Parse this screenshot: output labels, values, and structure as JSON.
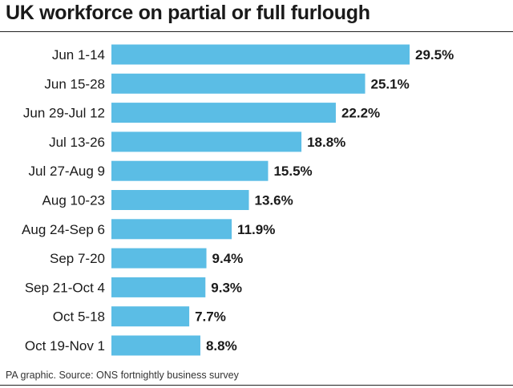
{
  "title": "UK workforce on partial or full furlough",
  "source": "PA graphic. Source: ONS fortnightly business survey",
  "colors": {
    "bar": "#5bbde5",
    "text": "#1a1a1a"
  },
  "chart_data": {
    "type": "bar",
    "orientation": "horizontal",
    "title": "UK workforce on partial or full furlough",
    "xlabel": "",
    "ylabel": "",
    "grid": false,
    "xlim": [
      0,
      29.5
    ],
    "categories": [
      "Jun 1-14",
      "Jun 15-28",
      "Jun 29-Jul 12",
      "Jul 13-26",
      "Jul 27-Aug 9",
      "Aug 10-23",
      "Aug 24-Sep 6",
      "Sep 7-20",
      "Sep 21-Oct 4",
      "Oct 5-18",
      "Oct 19-Nov 1"
    ],
    "values": [
      29.5,
      25.1,
      22.2,
      18.8,
      15.5,
      13.6,
      11.9,
      9.4,
      9.3,
      7.7,
      8.8
    ],
    "value_labels": [
      "29.5%",
      "25.1%",
      "22.2%",
      "18.8%",
      "15.5%",
      "13.6%",
      "11.9%",
      "9.4%",
      "9.3%",
      "7.7%",
      "8.8%"
    ]
  }
}
